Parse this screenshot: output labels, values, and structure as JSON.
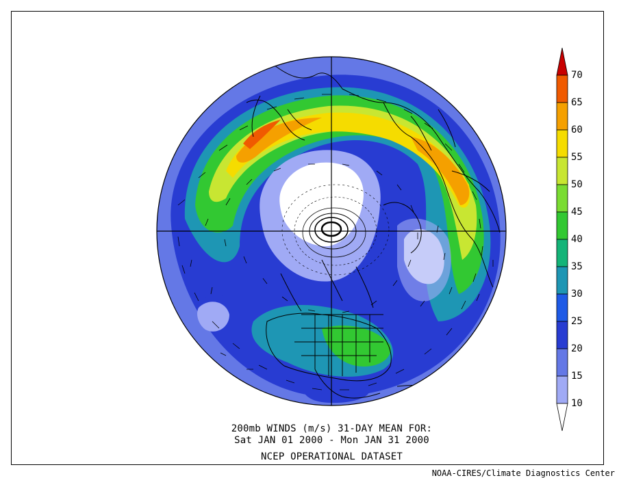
{
  "caption": {
    "line1": "200mb WINDS (m/s)   31-DAY MEAN FOR:",
    "line2": "Sat JAN 01 2000 - Mon JAN 31 2000",
    "line3": "NCEP OPERATIONAL DATASET"
  },
  "credit": "NOAA-CIRES/Climate Diagnostics Center",
  "colorbar": {
    "levels": [
      "70",
      "65",
      "60",
      "55",
      "50",
      "45",
      "40",
      "35",
      "30",
      "25",
      "20",
      "15",
      "10"
    ],
    "colors": [
      "#c80000",
      "#f05a00",
      "#f5a000",
      "#f5dc00",
      "#c8e632",
      "#7adc32",
      "#32c832",
      "#14b478",
      "#1e96b4",
      "#1e5ae6",
      "#283cd2",
      "#6478e6",
      "#a0aaf5",
      "#ffffff"
    ]
  }
}
